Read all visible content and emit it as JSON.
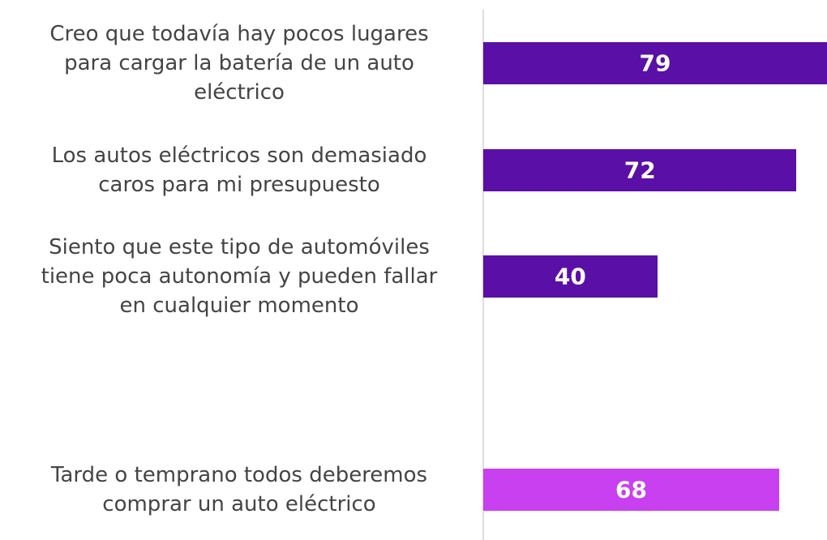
{
  "chart_data": {
    "type": "barh",
    "categories": [
      "Creo que todavía hay pocos lugares\npara cargar la batería de un auto\neléctrico",
      "Los autos eléctricos son demasiado\ncaros para mi presupuesto",
      "Siento que este tipo de automóviles\ntiene poca autonomía y pueden fallar\nen cualquier momento",
      null,
      "Tarde o temprano todos deberemos\ncomprar un auto eléctrico"
    ],
    "values": [
      79,
      72,
      40,
      null,
      68
    ],
    "colors": [
      "#5a0fa6",
      "#5a0fa6",
      "#5a0fa6",
      null,
      "#c840f0"
    ],
    "xlim": [
      0,
      79
    ]
  }
}
